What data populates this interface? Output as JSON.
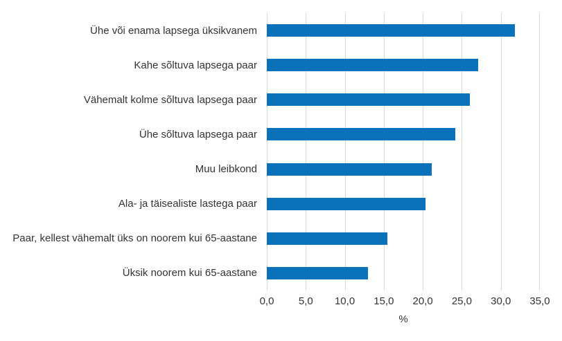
{
  "chart_data": {
    "type": "bar",
    "orientation": "horizontal",
    "title": "",
    "xlabel": "%",
    "ylabel": "",
    "xlim": [
      0,
      35
    ],
    "grid": "vertical",
    "legend": "none",
    "categories": [
      "Ühe või enama lapsega üksikvanem",
      "Kahe sõltuva lapsega paar",
      "Vähemalt kolme sõltuva lapsega paar",
      "Ühe sõltuva lapsega paar",
      "Muu leibkond",
      "Ala- ja täisealiste lastega paar",
      "Paar, kellest vähemalt üks on noorem kui 65-aastane",
      "Üksik noorem kui 65-aastane"
    ],
    "values": [
      31.8,
      27.1,
      26.0,
      24.2,
      21.1,
      20.3,
      15.5,
      13.0
    ],
    "xticks": [
      "0,0",
      "5,0",
      "10,0",
      "15,0",
      "20,0",
      "25,0",
      "30,0",
      "35,0"
    ],
    "xtick_values": [
      0,
      5,
      10,
      15,
      20,
      25,
      30,
      35
    ],
    "colors": {
      "bar": "#0a72ba",
      "gridline": "#d9d9d9",
      "text": "#333333",
      "background": "#ffffff"
    }
  }
}
